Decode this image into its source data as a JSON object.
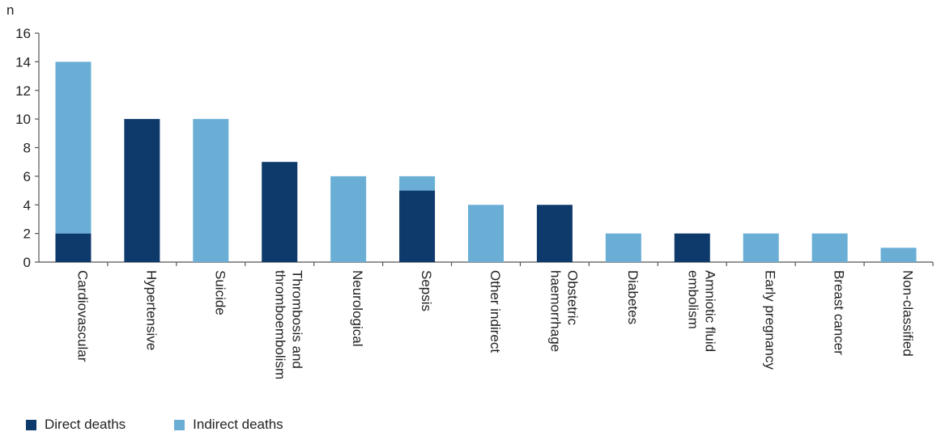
{
  "chart_data": {
    "type": "bar",
    "stacked": true,
    "ylabel": "n",
    "ylim": [
      0,
      16
    ],
    "yticks": [
      0,
      2,
      4,
      6,
      8,
      10,
      12,
      14,
      16
    ],
    "categories": [
      [
        "Cardiovascular"
      ],
      [
        "Hypertensive"
      ],
      [
        "Suicide"
      ],
      [
        "Thrombosis and",
        "thromboembolism"
      ],
      [
        "Neurological"
      ],
      [
        "Sepsis"
      ],
      [
        "Other indirect"
      ],
      [
        "Obstetric",
        "haemorrhage"
      ],
      [
        "Diabetes"
      ],
      [
        "Amniotic fluid",
        "embolism"
      ],
      [
        "Early pregnancy"
      ],
      [
        "Breast cancer"
      ],
      [
        "Non-classified"
      ]
    ],
    "series": [
      {
        "name": "Direct deaths",
        "color": "#0e3a6b",
        "values": [
          2,
          10,
          0,
          7,
          0,
          5,
          0,
          4,
          0,
          2,
          0,
          0,
          0
        ]
      },
      {
        "name": "Indirect deaths",
        "color": "#6aaed6",
        "values": [
          12,
          0,
          10,
          0,
          6,
          1,
          4,
          0,
          2,
          0,
          2,
          2,
          1
        ]
      }
    ],
    "grid": false,
    "legend_position": "bottom-left"
  }
}
